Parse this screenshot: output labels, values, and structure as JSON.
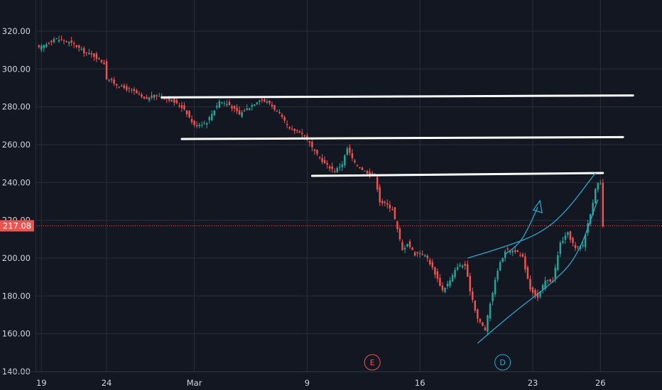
{
  "chart_data": {
    "type": "candlestick",
    "title": "",
    "xlabel": "",
    "ylabel": "",
    "ylim": [
      140,
      330
    ],
    "y_ticks": [
      "140.00",
      "160.00",
      "180.00",
      "200.00",
      "220.00",
      "240.00",
      "260.00",
      "280.00",
      "300.00",
      "320.00"
    ],
    "x_ticks": [
      {
        "label": "19",
        "idx": 1
      },
      {
        "label": "24",
        "idx": 27
      },
      {
        "label": "Mar",
        "idx": 62
      },
      {
        "label": "9",
        "idx": 107
      },
      {
        "label": "16",
        "idx": 152
      },
      {
        "label": "23",
        "idx": 197
      },
      {
        "label": "26",
        "idx": 224
      }
    ],
    "bar_count": 240,
    "last_price": "217.08",
    "colors": {
      "background": "#131722",
      "up": "#26a69a",
      "down": "#ef5350",
      "grid": "#2a2e39",
      "axis_text": "#d1d4dc",
      "price_tag": "#ef5350",
      "level_line": "#ffffff",
      "drawing": "#2ba6c8",
      "earnings_marker": "#ef5350",
      "dividend_marker": "#2ba6c8"
    },
    "event_markers": [
      {
        "label": "E",
        "idx": 133,
        "kind": "earnings"
      },
      {
        "label": "D",
        "idx": 185,
        "kind": "dividend"
      }
    ],
    "horizontal_levels": [
      {
        "from_idx": 49,
        "to_idx": 237,
        "start": 285,
        "end": 286
      },
      {
        "from_idx": 57,
        "to_idx": 233,
        "start": 263,
        "end": 264
      },
      {
        "from_idx": 109,
        "to_idx": 225,
        "start": 243.5,
        "end": 245
      }
    ],
    "channel_upper": [
      [
        171,
        200
      ],
      [
        186,
        206
      ],
      [
        200,
        213
      ],
      [
        210,
        224
      ],
      [
        222,
        245
      ]
    ],
    "channel_lower": [
      [
        175,
        155
      ],
      [
        190,
        172
      ],
      [
        205,
        187
      ],
      [
        215,
        201
      ],
      [
        223,
        231
      ]
    ],
    "curved_arrow": [
      [
        186,
        202
      ],
      [
        192,
        208
      ],
      [
        196,
        218
      ],
      [
        199,
        227
      ]
    ],
    "series": [
      {
        "name": "",
        "anchors": [
          [
            0,
            311
          ],
          [
            4,
            314
          ],
          [
            6,
            316
          ],
          [
            10,
            315
          ],
          [
            14,
            313
          ],
          [
            18,
            309
          ],
          [
            22,
            307
          ],
          [
            26,
            303
          ],
          [
            27,
            295
          ],
          [
            32,
            291
          ],
          [
            38,
            288
          ],
          [
            42,
            284
          ],
          [
            47,
            286
          ],
          [
            52,
            284
          ],
          [
            58,
            279
          ],
          [
            62,
            270
          ],
          [
            67,
            272
          ],
          [
            72,
            283
          ],
          [
            76,
            281
          ],
          [
            80,
            276
          ],
          [
            84,
            280
          ],
          [
            88,
            284
          ],
          [
            92,
            282
          ],
          [
            96,
            276
          ],
          [
            100,
            268
          ],
          [
            104,
            267
          ],
          [
            107,
            263
          ],
          [
            110,
            256
          ],
          [
            114,
            250
          ],
          [
            118,
            246
          ],
          [
            121,
            250
          ],
          [
            123,
            258
          ],
          [
            126,
            250
          ],
          [
            130,
            246
          ],
          [
            134,
            244
          ],
          [
            136,
            230
          ],
          [
            139,
            228
          ],
          [
            141,
            226
          ],
          [
            145,
            204
          ],
          [
            147,
            208
          ],
          [
            150,
            202
          ],
          [
            152,
            203
          ],
          [
            155,
            200
          ],
          [
            158,
            192
          ],
          [
            161,
            183
          ],
          [
            164,
            188
          ],
          [
            167,
            196
          ],
          [
            170,
            196
          ],
          [
            172,
            183
          ],
          [
            175,
            168
          ],
          [
            178,
            162
          ],
          [
            180,
            176
          ],
          [
            183,
            194
          ],
          [
            186,
            204
          ],
          [
            190,
            204
          ],
          [
            193,
            200
          ],
          [
            196,
            184
          ],
          [
            199,
            179
          ],
          [
            202,
            188
          ],
          [
            205,
            188
          ],
          [
            208,
            208
          ],
          [
            211,
            213
          ],
          [
            214,
            205
          ],
          [
            217,
            207
          ],
          [
            220,
            224
          ],
          [
            222,
            236
          ],
          [
            223,
            239
          ],
          [
            224,
            239
          ],
          [
            225,
            217
          ]
        ]
      }
    ]
  }
}
